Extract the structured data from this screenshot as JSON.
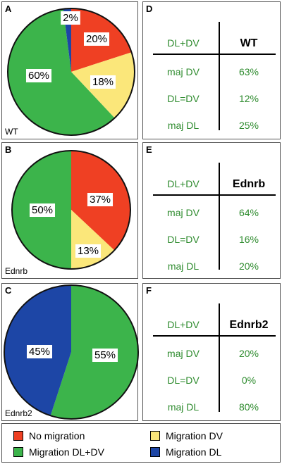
{
  "colors": {
    "no_migration": "#ef4023",
    "migration_dv": "#fbe77a",
    "migration_dl_dv": "#3cb44b",
    "migration_dl": "#1d46a6",
    "table_text": "#2e8b2e"
  },
  "chart_data": [
    {
      "type": "pie",
      "panel": "A",
      "group": "WT",
      "slices": [
        {
          "category": "No migration",
          "value": 20,
          "label": "20%"
        },
        {
          "category": "Migration DV",
          "value": 18,
          "label": "18%"
        },
        {
          "category": "Migration DL+DV",
          "value": 60,
          "label": "60%"
        },
        {
          "category": "Migration DL",
          "value": 2,
          "label": "2%"
        }
      ]
    },
    {
      "type": "pie",
      "panel": "B",
      "group": "Ednrb",
      "slices": [
        {
          "category": "No migration",
          "value": 37,
          "label": "37%"
        },
        {
          "category": "Migration DV",
          "value": 13,
          "label": "13%"
        },
        {
          "category": "Migration DL+DV",
          "value": 50,
          "label": "50%"
        }
      ]
    },
    {
      "type": "pie",
      "panel": "C",
      "group": "Ednrb2",
      "slices": [
        {
          "category": "Migration DL+DV",
          "value": 55,
          "label": "55%"
        },
        {
          "category": "Migration DL",
          "value": 45,
          "label": "45%"
        }
      ]
    },
    {
      "type": "table",
      "panel": "D",
      "corner": "DL+DV",
      "header": "WT",
      "rows": [
        {
          "label": "maj DV",
          "value": "63%"
        },
        {
          "label": "DL=DV",
          "value": "12%"
        },
        {
          "label": "maj DL",
          "value": "25%"
        }
      ]
    },
    {
      "type": "table",
      "panel": "E",
      "corner": "DL+DV",
      "header": "Ednrb",
      "rows": [
        {
          "label": "maj DV",
          "value": "64%"
        },
        {
          "label": "DL=DV",
          "value": "16%"
        },
        {
          "label": "maj DL",
          "value": "20%"
        }
      ]
    },
    {
      "type": "table",
      "panel": "F",
      "corner": "DL+DV",
      "header": "Ednrb2",
      "rows": [
        {
          "label": "maj DV",
          "value": "20%"
        },
        {
          "label": "DL=DV",
          "value": "0%"
        },
        {
          "label": "maj DL",
          "value": "80%"
        }
      ]
    }
  ],
  "legend": [
    {
      "label": "No migration",
      "color_key": "no_migration"
    },
    {
      "label": "Migration DV",
      "color_key": "migration_dv"
    },
    {
      "label": "Migration DL+DV",
      "color_key": "migration_dl_dv"
    },
    {
      "label": "Migration DL",
      "color_key": "migration_dl"
    }
  ]
}
